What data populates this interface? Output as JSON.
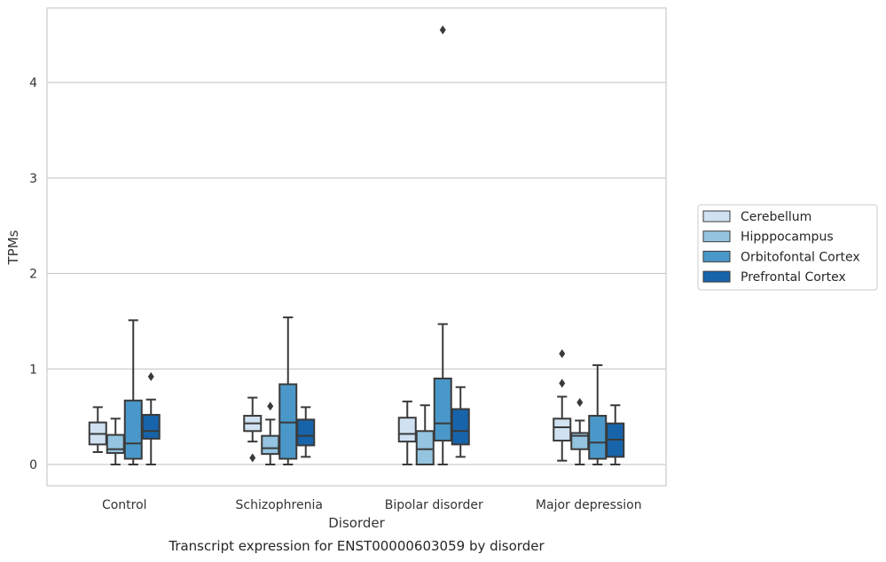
{
  "chart_data": {
    "type": "box",
    "title": "Transcript expression for ENST00000603059 by disorder",
    "xlabel": "Disorder",
    "ylabel": "TPMs",
    "ylim": [
      -0.22,
      4.8
    ],
    "yticks": [
      "0",
      "1",
      "2",
      "3",
      "4"
    ],
    "grid": true,
    "legend_position": "right",
    "categories": [
      "Control",
      "Schizophrenia",
      "Bipolar disorder",
      "Major depression"
    ],
    "series": [
      {
        "name": "Cerebellum",
        "color": "#d0e1f2",
        "boxes": [
          {
            "whisker_low": 0.13,
            "q1": 0.21,
            "median": 0.32,
            "q3": 0.44,
            "whisker_high": 0.6,
            "outliers": []
          },
          {
            "whisker_low": 0.24,
            "q1": 0.35,
            "median": 0.43,
            "q3": 0.51,
            "whisker_high": 0.7,
            "outliers": [
              0.07
            ]
          },
          {
            "whisker_low": 0.0,
            "q1": 0.24,
            "median": 0.32,
            "q3": 0.49,
            "whisker_high": 0.66,
            "outliers": []
          },
          {
            "whisker_low": 0.04,
            "q1": 0.25,
            "median": 0.39,
            "q3": 0.48,
            "whisker_high": 0.71,
            "outliers": [
              0.85,
              1.16
            ]
          }
        ]
      },
      {
        "name": "Hipppocampus",
        "color": "#94c4df",
        "boxes": [
          {
            "whisker_low": 0.0,
            "q1": 0.12,
            "median": 0.16,
            "q3": 0.31,
            "whisker_high": 0.48,
            "outliers": []
          },
          {
            "whisker_low": 0.0,
            "q1": 0.11,
            "median": 0.17,
            "q3": 0.3,
            "whisker_high": 0.47,
            "outliers": [
              0.61
            ]
          },
          {
            "whisker_low": 0.0,
            "q1": 0.0,
            "median": 0.16,
            "q3": 0.35,
            "whisker_high": 0.62,
            "outliers": []
          },
          {
            "whisker_low": 0.0,
            "q1": 0.16,
            "median": 0.3,
            "q3": 0.33,
            "whisker_high": 0.46,
            "outliers": [
              0.65
            ]
          }
        ]
      },
      {
        "name": "Orbitofontal Cortex",
        "color": "#4a98c9",
        "boxes": [
          {
            "whisker_low": 0.0,
            "q1": 0.06,
            "median": 0.22,
            "q3": 0.67,
            "whisker_high": 1.51,
            "outliers": []
          },
          {
            "whisker_low": 0.0,
            "q1": 0.06,
            "median": 0.44,
            "q3": 0.84,
            "whisker_high": 1.54,
            "outliers": []
          },
          {
            "whisker_low": 0.0,
            "q1": 0.25,
            "median": 0.43,
            "q3": 0.9,
            "whisker_high": 1.47,
            "outliers": [
              4.55
            ]
          },
          {
            "whisker_low": 0.0,
            "q1": 0.06,
            "median": 0.23,
            "q3": 0.51,
            "whisker_high": 1.04,
            "outliers": []
          }
        ]
      },
      {
        "name": "Prefrontal Cortex",
        "color": "#1764ab",
        "boxes": [
          {
            "whisker_low": 0.0,
            "q1": 0.27,
            "median": 0.35,
            "q3": 0.52,
            "whisker_high": 0.68,
            "outliers": [
              0.92
            ]
          },
          {
            "whisker_low": 0.08,
            "q1": 0.2,
            "median": 0.3,
            "q3": 0.47,
            "whisker_high": 0.6,
            "outliers": []
          },
          {
            "whisker_low": 0.08,
            "q1": 0.21,
            "median": 0.35,
            "q3": 0.58,
            "whisker_high": 0.81,
            "outliers": []
          },
          {
            "whisker_low": 0.0,
            "q1": 0.08,
            "median": 0.26,
            "q3": 0.43,
            "whisker_high": 0.62,
            "outliers": []
          }
        ]
      }
    ]
  }
}
